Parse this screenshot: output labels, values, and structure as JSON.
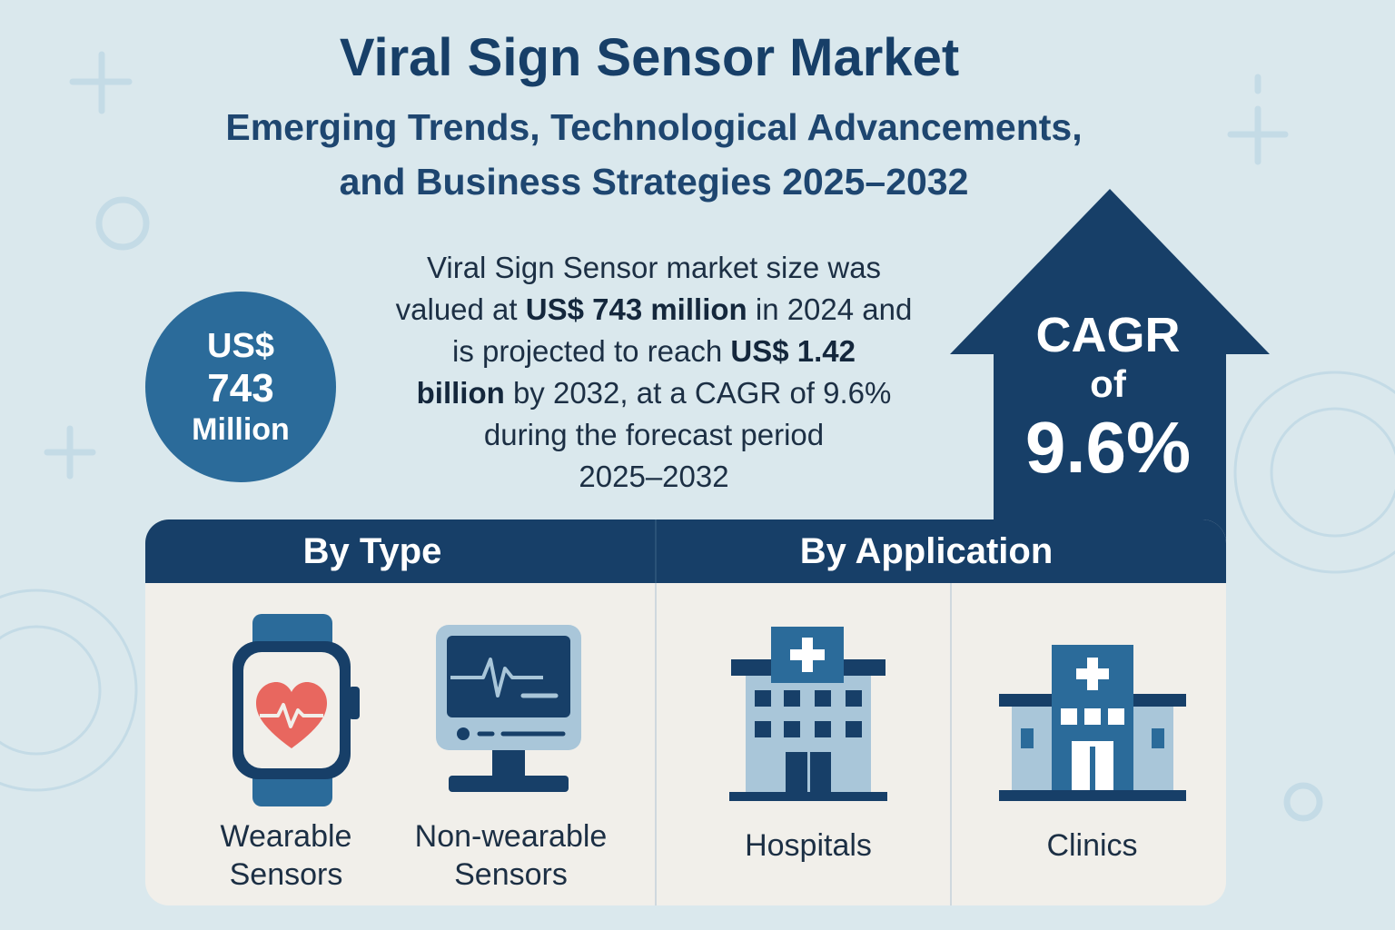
{
  "header": {
    "title": "Viral Sign Sensor Market",
    "subtitle_line1": "Emerging Trends, Technological Advancements,",
    "subtitle_line2": "and Business Strategies 2025–2032"
  },
  "market_size_badge": {
    "currency": "US$",
    "value": "743",
    "unit": "Million"
  },
  "summary": {
    "t1": "Viral Sign Sensor market size was",
    "t2": "valued at ",
    "b1": "US$ 743 million",
    "t3": " in 2024 and",
    "t4": "is projected to reach ",
    "b2": "US$ 1.42",
    "b3": "billion",
    "t5": " by 2032, at a CAGR of 9.6%",
    "t6": "during the forecast period",
    "t7": "2025–2032"
  },
  "cagr": {
    "line1": "CAGR",
    "line2": "of",
    "line3": "9.6%"
  },
  "segments": {
    "by_type": {
      "heading": "By Type",
      "items": [
        {
          "line1": "Wearable",
          "line2": "Sensors",
          "icon": "smartwatch-heart-icon"
        },
        {
          "line1": "Non-wearable",
          "line2": "Sensors",
          "icon": "vital-monitor-icon"
        }
      ]
    },
    "by_application": {
      "heading": "By Application",
      "items": [
        {
          "label": "Hospitals",
          "icon": "hospital-building-icon"
        },
        {
          "label": "Clinics",
          "icon": "clinic-building-icon"
        }
      ]
    }
  },
  "colors": {
    "background": "#dae8ed",
    "navy": "#173f68",
    "accent_blue": "#2b6b9a",
    "light_blue": "#a9c6d9",
    "panel": "#f1efea",
    "heart": "#e8675f"
  }
}
